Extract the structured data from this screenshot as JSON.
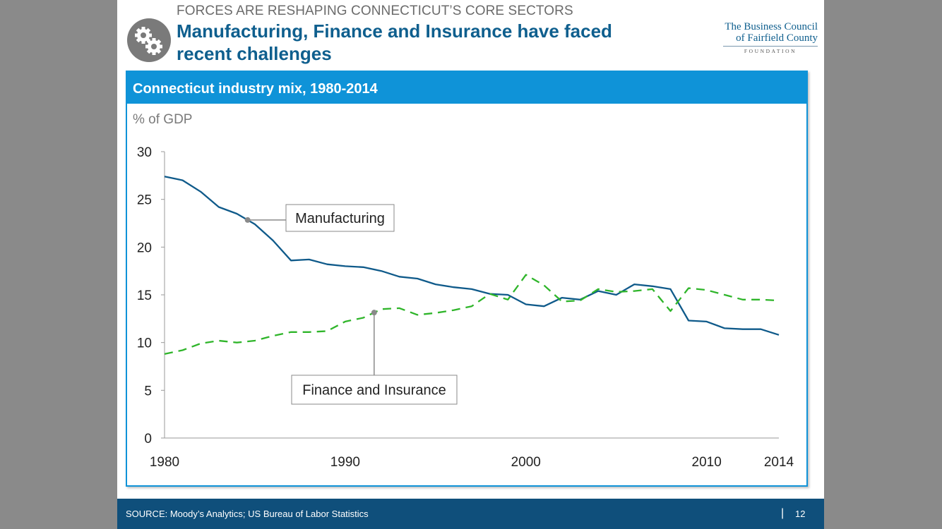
{
  "header": {
    "kicker": "FORCES ARE RESHAPING CONNECTICUT’S CORE SECTORS",
    "title": "Manufacturing, Finance and Insurance have faced recent challenges",
    "icon": "gears-icon"
  },
  "logo": {
    "line1": "The Business Council",
    "line2": "of Fairfield County",
    "line3": "FOUNDATION"
  },
  "panel": {
    "title": "Connecticut industry mix, 1980-2014",
    "unit_label": "% of GDP"
  },
  "chart_data": {
    "type": "line",
    "title": "Connecticut industry mix, 1980-2014",
    "ylabel": "% of GDP",
    "xlabel": "",
    "xlim": [
      1980,
      2014
    ],
    "ylim": [
      0,
      30
    ],
    "yticks": [
      0,
      5,
      10,
      15,
      20,
      25,
      30
    ],
    "xticks": [
      1980,
      1990,
      2000,
      2010,
      2014
    ],
    "grid": false,
    "x": [
      1980,
      1981,
      1982,
      1983,
      1984,
      1985,
      1986,
      1987,
      1988,
      1989,
      1990,
      1991,
      1992,
      1993,
      1994,
      1995,
      1996,
      1997,
      1998,
      1999,
      2000,
      2001,
      2002,
      2003,
      2004,
      2005,
      2006,
      2007,
      2008,
      2009,
      2010,
      2011,
      2012,
      2013,
      2014
    ],
    "series": [
      {
        "name": "Manufacturing",
        "color": "#0f5a8a",
        "style": "solid",
        "values": [
          27.4,
          27.0,
          25.8,
          24.2,
          23.5,
          22.4,
          20.7,
          18.6,
          18.7,
          18.2,
          18.0,
          17.9,
          17.5,
          16.9,
          16.7,
          16.1,
          15.8,
          15.6,
          15.1,
          15.0,
          14.0,
          13.8,
          14.7,
          14.5,
          15.4,
          15.0,
          16.1,
          15.9,
          15.6,
          12.3,
          12.2,
          11.5,
          11.4,
          11.4,
          10.8
        ]
      },
      {
        "name": "Finance and Insurance",
        "color": "#2fb52a",
        "style": "dashed",
        "values": [
          8.8,
          9.2,
          9.9,
          10.2,
          10.0,
          10.2,
          10.7,
          11.1,
          11.1,
          11.2,
          12.2,
          12.6,
          13.5,
          13.6,
          12.9,
          13.1,
          13.4,
          13.8,
          15.1,
          14.5,
          17.1,
          16.0,
          14.3,
          14.4,
          15.6,
          15.3,
          15.4,
          15.6,
          13.3,
          15.7,
          15.5,
          15.0,
          14.5,
          14.5,
          14.4
        ]
      }
    ],
    "annotations": [
      {
        "text": "Manufacturing",
        "series": "Manufacturing",
        "at_x": 1984.6
      },
      {
        "text": "Finance and Insurance",
        "series": "Finance and Insurance",
        "at_x": 1991.6
      }
    ]
  },
  "footer": {
    "source": "SOURCE: Moody’s Analytics; US Bureau of Labor Statistics",
    "separator": "|",
    "page": "12"
  }
}
